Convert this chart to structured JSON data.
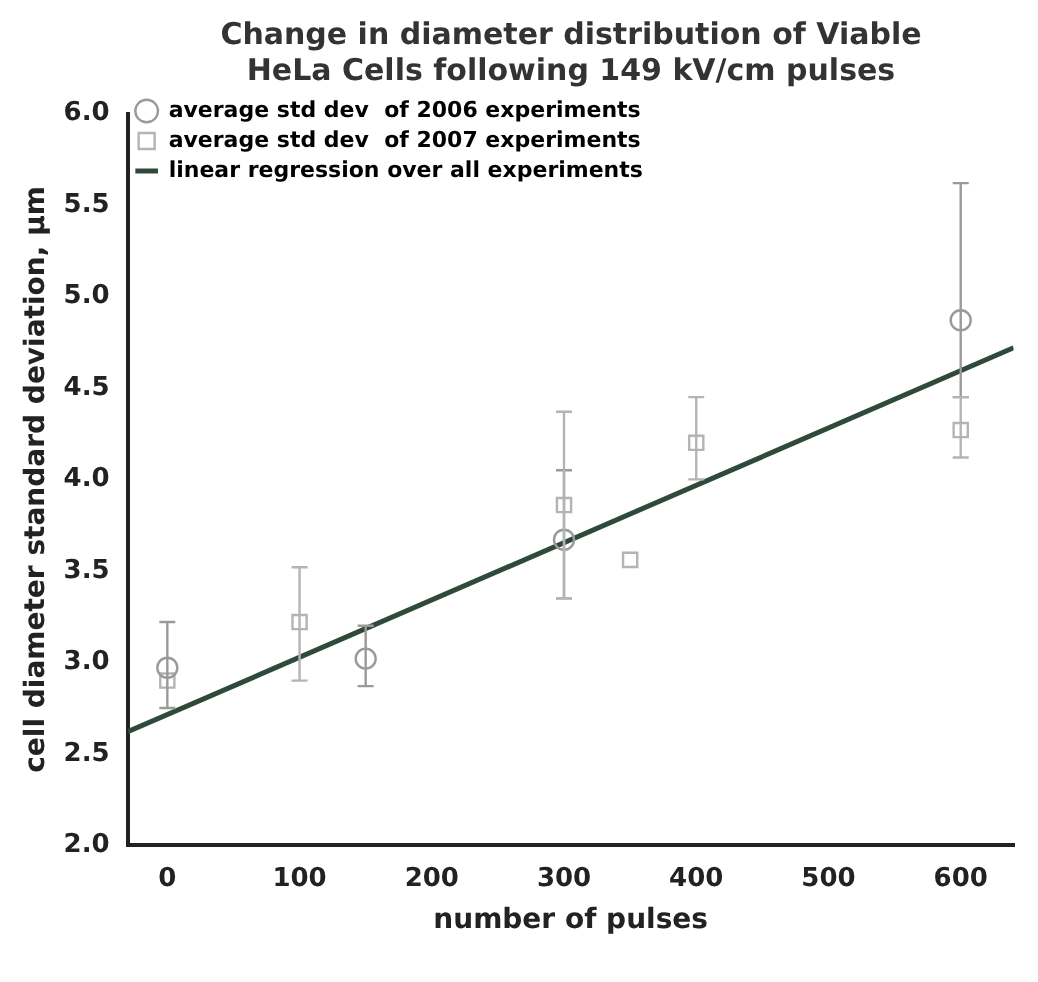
{
  "chart_data": {
    "type": "scatter",
    "title": "Change in diameter distribution of Viable HeLa Cells following 149 kV/cm pulses",
    "xlabel": "number of pulses",
    "ylabel": "cell diameter standard deviation, µm",
    "series": [
      {
        "name": "average std dev  of 2006 experiments",
        "color": "#9a9a9a",
        "marker": "circle",
        "x": [
          0,
          150,
          300,
          600
        ],
        "values": [
          2.97,
          3.02,
          3.67,
          4.87
        ],
        "errors": [
          [
            2.75,
            3.22
          ],
          [
            2.87,
            3.2
          ],
          [
            3.35,
            4.05
          ],
          [
            4.45,
            5.62
          ]
        ]
      },
      {
        "name": "average std dev  of 2007 experiments",
        "color": "#b4b4b4",
        "marker": "square",
        "x": [
          0,
          100,
          300,
          350,
          400,
          600
        ],
        "values": [
          2.9,
          3.22,
          3.86,
          3.56,
          4.2,
          4.27
        ],
        "errors": [
          null,
          [
            2.9,
            3.52
          ],
          [
            3.35,
            4.37
          ],
          null,
          [
            4.0,
            4.45
          ],
          [
            4.12,
            4.45
          ]
        ]
      },
      {
        "name": "linear regression over all experiments",
        "type": "line",
        "color": "#2f4a3a",
        "marker": "none",
        "x": [
          -30,
          640
        ],
        "values": [
          2.62,
          4.72
        ]
      }
    ],
    "xlim": [
      -30,
      640
    ],
    "xticks": [
      0,
      100,
      200,
      300,
      400,
      500,
      600
    ],
    "ylim": [
      2.0,
      6.0
    ],
    "yticks": [
      {
        "value": 2,
        "label": "2.0"
      },
      {
        "value": 2.5,
        "label": "2.5"
      },
      {
        "value": 3,
        "label": "3.0"
      },
      {
        "value": 3.5,
        "label": "3.5"
      },
      {
        "value": 4,
        "label": "4.0"
      },
      {
        "value": 4.5,
        "label": "4.5"
      },
      {
        "value": 5,
        "label": "5.0"
      },
      {
        "value": 5.5,
        "label": "5.5"
      },
      {
        "value": 6,
        "label": "6.0"
      }
    ],
    "grid": false,
    "legend": "top left"
  }
}
